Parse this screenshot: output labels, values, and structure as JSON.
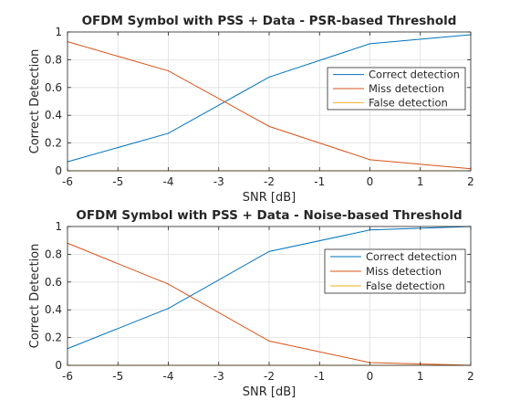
{
  "chart_data": [
    {
      "type": "line",
      "title": "OFDM Symbol with PSS + Data - PSR-based Threshold",
      "xlabel": "SNR [dB]",
      "ylabel": "Correct Detection",
      "xlim": [
        -6,
        2
      ],
      "ylim": [
        0,
        1
      ],
      "xticks": [
        -6,
        -5,
        -4,
        -3,
        -2,
        -1,
        0,
        1,
        2
      ],
      "yticks": [
        0,
        0.2,
        0.4,
        0.6,
        0.8,
        1
      ],
      "ytick_labels": [
        "0",
        "0.2",
        "0.4",
        "0.6",
        "0.8",
        "1"
      ],
      "grid": true,
      "legend_position": "right",
      "x": [
        -6,
        -4,
        -2,
        0,
        2
      ],
      "series": [
        {
          "name": "Correct detection",
          "color": "#0072BD",
          "values": [
            0.065,
            0.27,
            0.675,
            0.915,
            0.98
          ]
        },
        {
          "name": "Miss detection",
          "color": "#D95319",
          "values": [
            0.93,
            0.72,
            0.32,
            0.08,
            0.015
          ]
        },
        {
          "name": "False detection",
          "color": "#EDB120",
          "values": [
            0,
            0,
            0,
            0,
            0
          ]
        }
      ]
    },
    {
      "type": "line",
      "title": "OFDM Symbol with PSS + Data - Noise-based Threshold",
      "xlabel": "SNR [dB]",
      "ylabel": "Correct Detection",
      "xlim": [
        -6,
        2
      ],
      "ylim": [
        0,
        1
      ],
      "xticks": [
        -6,
        -5,
        -4,
        -3,
        -2,
        -1,
        0,
        1,
        2
      ],
      "yticks": [
        0,
        0.2,
        0.4,
        0.6,
        0.8,
        1
      ],
      "ytick_labels": [
        "0",
        "0.2",
        "0.4",
        "0.6",
        "0.8",
        "1"
      ],
      "grid": true,
      "legend_position": "right",
      "x": [
        -6,
        -4,
        -2,
        0,
        2
      ],
      "series": [
        {
          "name": "Correct detection",
          "color": "#0072BD",
          "values": [
            0.12,
            0.41,
            0.82,
            0.975,
            1.0
          ]
        },
        {
          "name": "Miss detection",
          "color": "#D95319",
          "values": [
            0.88,
            0.585,
            0.175,
            0.02,
            0.0
          ]
        },
        {
          "name": "False detection",
          "color": "#EDB120",
          "values": [
            0,
            0,
            0,
            0,
            0
          ]
        }
      ]
    }
  ]
}
